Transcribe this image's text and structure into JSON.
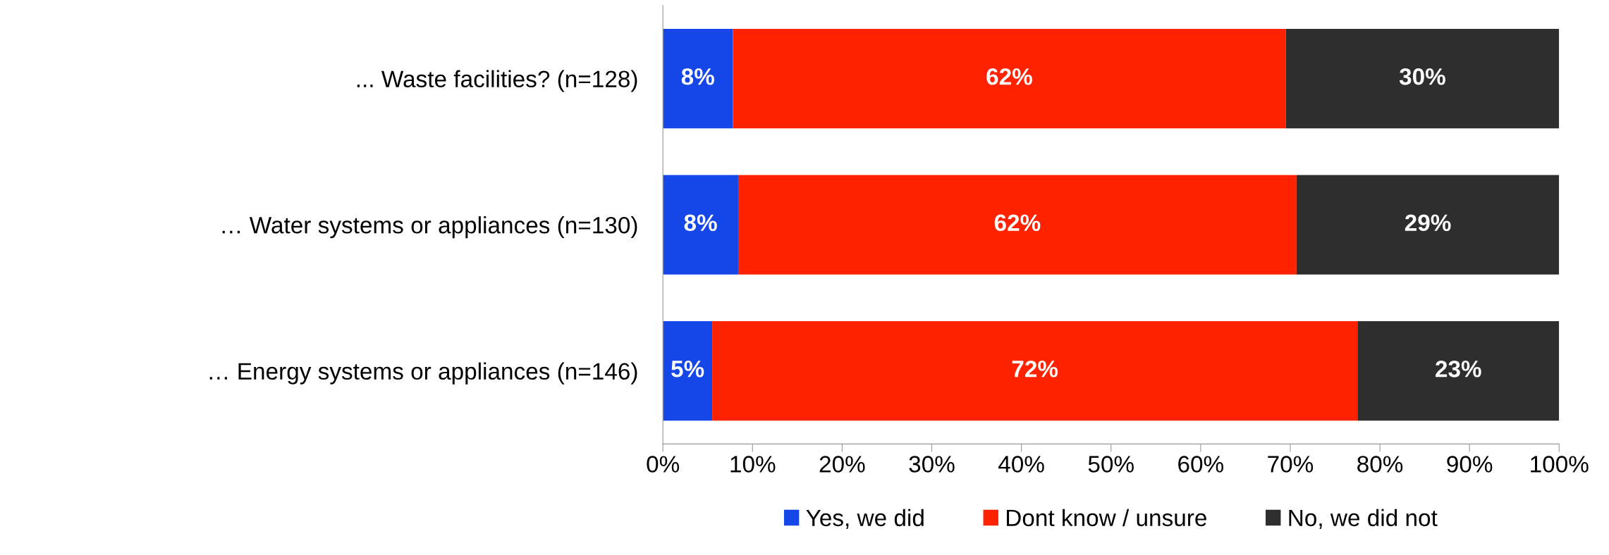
{
  "chart_data": {
    "type": "bar",
    "orientation": "horizontal",
    "stacked": true,
    "categories": [
      "... Waste facilities? (n=128)",
      "… Water systems or appliances (n=130)",
      "… Energy systems or appliances (n=146)"
    ],
    "series": [
      {
        "name": "Yes, we did",
        "color": "#1446e8",
        "values": [
          7.8,
          8.4,
          5.5
        ],
        "value_labels": [
          "8%",
          "8%",
          "5%"
        ]
      },
      {
        "name": "Dont know / unsure",
        "color": "#ff2200",
        "values": [
          61.7,
          62.3,
          72.0
        ],
        "value_labels": [
          "62%",
          "62%",
          "72%"
        ]
      },
      {
        "name": "No, we did not",
        "color": "#2e2e2e",
        "values": [
          30.5,
          29.3,
          22.5
        ],
        "value_labels": [
          "30%",
          "29%",
          "23%"
        ]
      }
    ],
    "xlim": [
      0,
      100
    ],
    "xticks": [
      {
        "value": 0,
        "label": "0%"
      },
      {
        "value": 10,
        "label": "10%"
      },
      {
        "value": 20,
        "label": "20%"
      },
      {
        "value": 30,
        "label": "30%"
      },
      {
        "value": 40,
        "label": "40%"
      },
      {
        "value": 50,
        "label": "50%"
      },
      {
        "value": 60,
        "label": "60%"
      },
      {
        "value": 70,
        "label": "70%"
      },
      {
        "value": 80,
        "label": "80%"
      },
      {
        "value": 90,
        "label": "90%"
      },
      {
        "value": 100,
        "label": "100%"
      }
    ],
    "grid": false,
    "legend": "bottom"
  }
}
